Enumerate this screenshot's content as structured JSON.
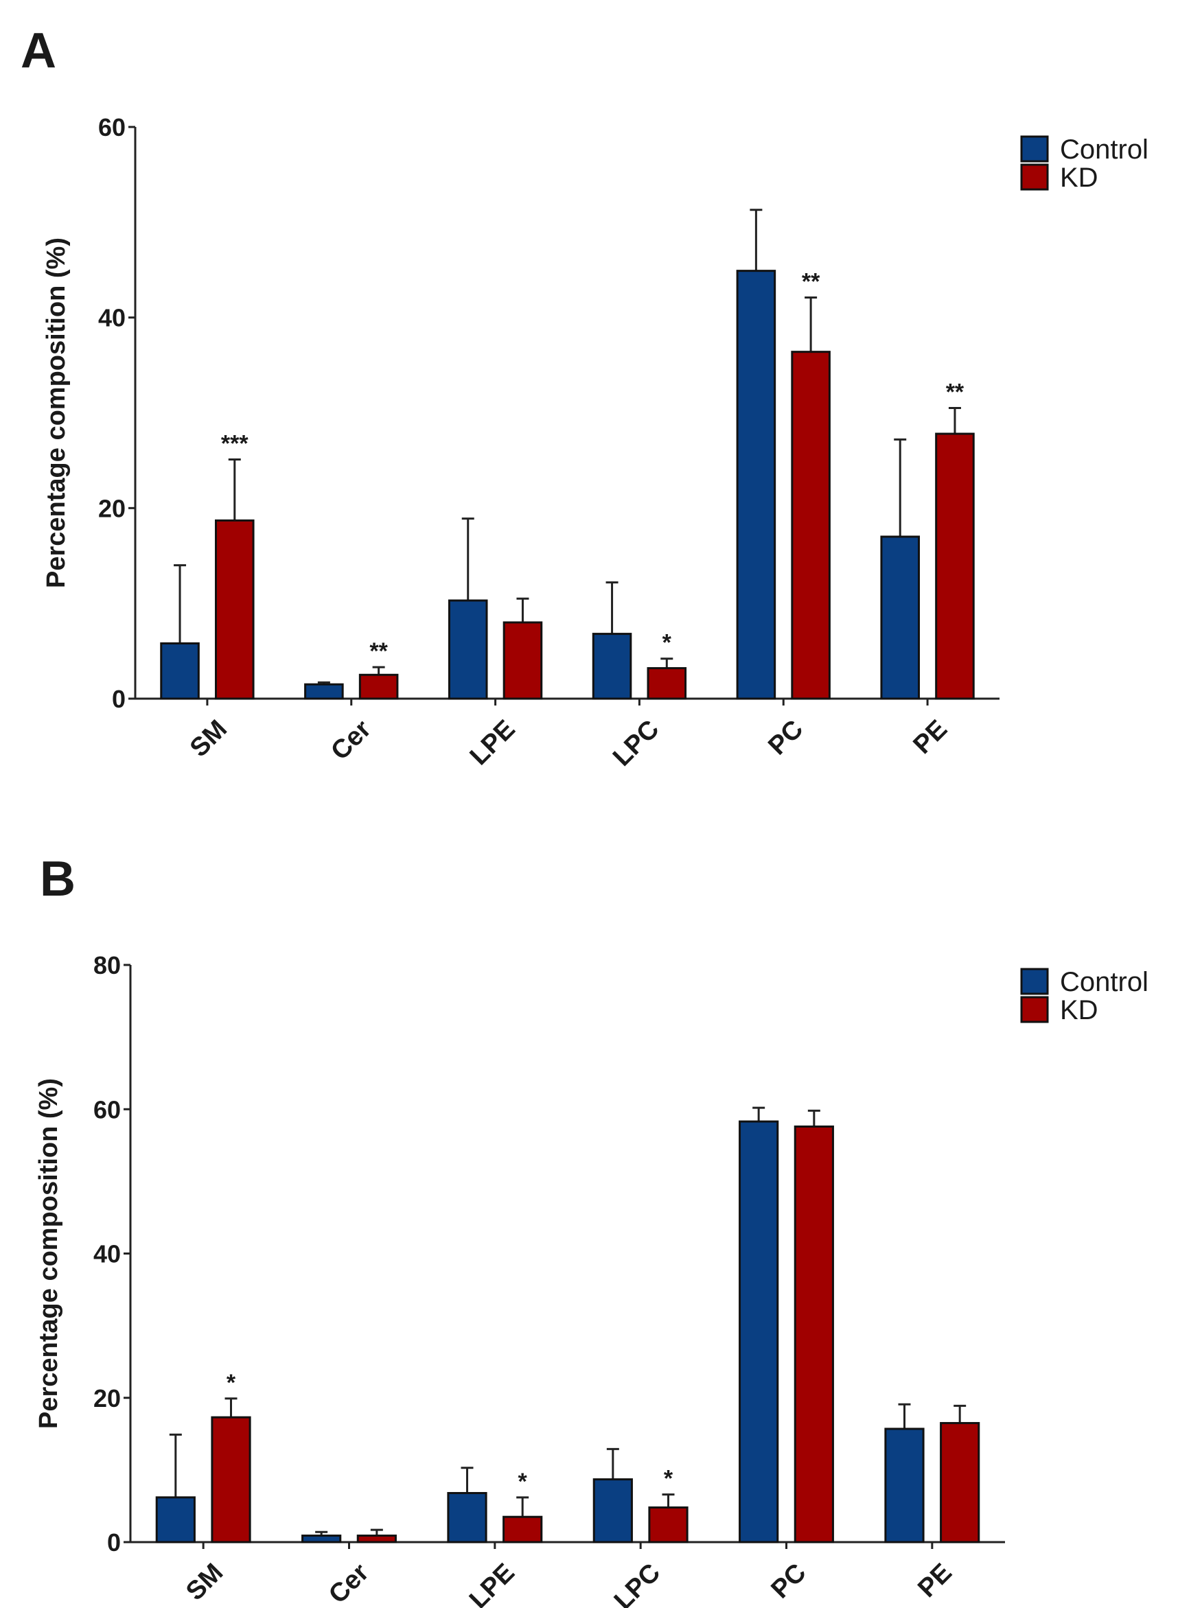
{
  "chart_data": [
    {
      "type": "bar",
      "panel": "A",
      "y_label": "Percentage composition (%)",
      "categories": [
        "SM",
        "Cer",
        "LPE",
        "LPC",
        "PC",
        "PE"
      ],
      "series": [
        {
          "name": "Control",
          "color": "#0a3f82",
          "values": [
            5.8,
            1.5,
            10.3,
            6.8,
            44.9,
            17.0
          ],
          "errors": [
            8.2,
            0.2,
            8.6,
            5.4,
            6.4,
            10.2
          ]
        },
        {
          "name": "KD",
          "color": "#a00000",
          "values": [
            18.7,
            2.5,
            8.0,
            3.2,
            36.4,
            27.8
          ],
          "errors": [
            6.4,
            0.8,
            2.5,
            1.0,
            5.7,
            2.7
          ],
          "significance": [
            "***",
            "**",
            null,
            "*",
            "**",
            "**"
          ]
        }
      ],
      "ylim": [
        0,
        60
      ],
      "yticks": [
        0,
        20,
        40,
        60
      ],
      "grid": false,
      "legend": "top-right"
    },
    {
      "type": "bar",
      "panel": "B",
      "y_label": "Percentage composition (%)",
      "categories": [
        "SM",
        "Cer",
        "LPE",
        "LPC",
        "PC",
        "PE"
      ],
      "series": [
        {
          "name": "Control",
          "color": "#0a3f82",
          "values": [
            6.2,
            0.9,
            6.8,
            8.7,
            58.3,
            15.7
          ],
          "errors": [
            8.7,
            0.5,
            3.5,
            4.2,
            1.9,
            3.4
          ]
        },
        {
          "name": "KD",
          "color": "#a00000",
          "values": [
            17.3,
            0.9,
            3.5,
            4.8,
            57.6,
            16.5
          ],
          "errors": [
            2.6,
            0.8,
            2.7,
            1.8,
            2.2,
            2.4
          ],
          "significance": [
            "*",
            null,
            "*",
            "*",
            null,
            null
          ]
        }
      ],
      "ylim": [
        0,
        80
      ],
      "yticks": [
        0,
        20,
        40,
        60,
        80
      ],
      "grid": false,
      "legend": "top-right"
    }
  ]
}
